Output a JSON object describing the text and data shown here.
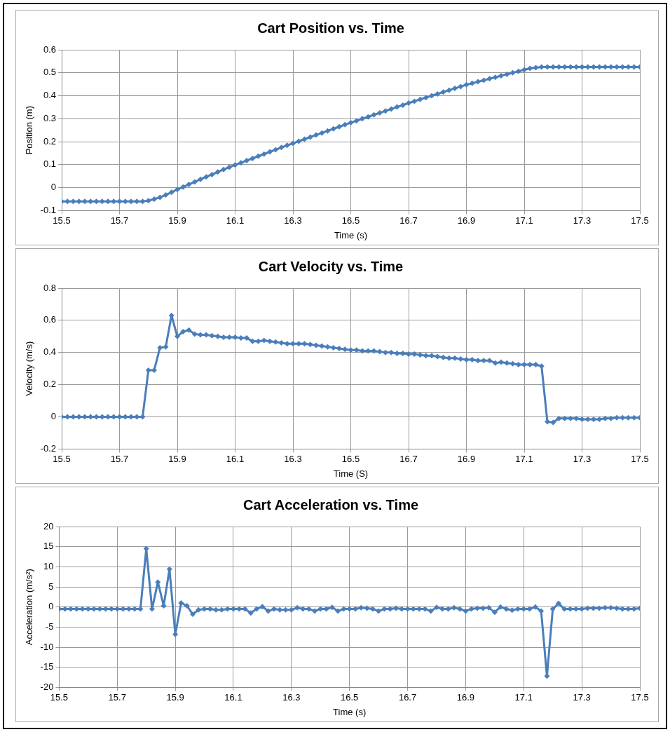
{
  "chart_data": [
    {
      "type": "line",
      "title": "Cart Position vs. Time",
      "xlabel": "Time (s)",
      "ylabel": "Position (m)",
      "xlim": [
        15.5,
        17.5
      ],
      "xticks": [
        15.5,
        15.7,
        15.9,
        16.1,
        16.3,
        16.5,
        16.7,
        16.9,
        17.1,
        17.3,
        17.5
      ],
      "ylim": [
        -0.1,
        0.6
      ],
      "yticks": [
        -0.1,
        0,
        0.1,
        0.2,
        0.3,
        0.4,
        0.5,
        0.6
      ],
      "grid": true,
      "legend": false,
      "marker": "diamond",
      "line_style": "solid",
      "x": [
        15.5,
        15.52,
        15.54,
        15.56,
        15.58,
        15.6,
        15.62,
        15.64,
        15.66,
        15.68,
        15.7,
        15.72,
        15.74,
        15.76,
        15.78,
        15.8,
        15.82,
        15.84,
        15.86,
        15.88,
        15.9,
        15.92,
        15.94,
        15.96,
        15.98,
        16,
        16.02,
        16.04,
        16.06,
        16.08,
        16.1,
        16.12,
        16.14,
        16.16,
        16.18,
        16.2,
        16.22,
        16.24,
        16.26,
        16.28,
        16.3,
        16.32,
        16.34,
        16.36,
        16.38,
        16.4,
        16.42,
        16.44,
        16.46,
        16.48,
        16.5,
        16.52,
        16.54,
        16.56,
        16.58,
        16.6,
        16.62,
        16.64,
        16.66,
        16.68,
        16.7,
        16.72,
        16.74,
        16.76,
        16.78,
        16.8,
        16.82,
        16.84,
        16.86,
        16.88,
        16.9,
        16.92,
        16.94,
        16.96,
        16.98,
        17,
        17.02,
        17.04,
        17.06,
        17.08,
        17.1,
        17.12,
        17.14,
        17.16,
        17.18,
        17.2,
        17.22,
        17.24,
        17.26,
        17.28,
        17.3,
        17.32,
        17.34,
        17.36,
        17.38,
        17.4,
        17.42,
        17.44,
        17.46,
        17.48,
        17.5
      ],
      "series": [
        {
          "color": "#4a7ebb",
          "values": [
            -0.06,
            -0.06,
            -0.06,
            -0.06,
            -0.06,
            -0.06,
            -0.06,
            -0.06,
            -0.06,
            -0.06,
            -0.06,
            -0.06,
            -0.06,
            -0.06,
            -0.06,
            -0.057,
            -0.05,
            -0.042,
            -0.032,
            -0.02,
            -0.008,
            0.003,
            0.014,
            0.025,
            0.036,
            0.047,
            0.057,
            0.068,
            0.079,
            0.089,
            0.099,
            0.108,
            0.118,
            0.127,
            0.137,
            0.146,
            0.156,
            0.165,
            0.175,
            0.184,
            0.193,
            0.202,
            0.211,
            0.22,
            0.229,
            0.238,
            0.247,
            0.256,
            0.265,
            0.274,
            0.283,
            0.291,
            0.3,
            0.308,
            0.317,
            0.325,
            0.334,
            0.342,
            0.351,
            0.359,
            0.368,
            0.376,
            0.384,
            0.392,
            0.4,
            0.408,
            0.416,
            0.424,
            0.432,
            0.44,
            0.448,
            0.454,
            0.461,
            0.467,
            0.474,
            0.48,
            0.487,
            0.493,
            0.5,
            0.506,
            0.513,
            0.519,
            0.522,
            0.525,
            0.525,
            0.525,
            0.525,
            0.525,
            0.525,
            0.525,
            0.525,
            0.525,
            0.525,
            0.525,
            0.525,
            0.525,
            0.525,
            0.525,
            0.525,
            0.525,
            0.525
          ]
        }
      ]
    },
    {
      "type": "line",
      "title": "Cart Velocity vs. Time",
      "xlabel": "Time (S)",
      "ylabel": "Velocity (m/s)",
      "xlim": [
        15.5,
        17.5
      ],
      "xticks": [
        15.5,
        15.7,
        15.9,
        16.1,
        16.3,
        16.5,
        16.7,
        16.9,
        17.1,
        17.3,
        17.5
      ],
      "ylim": [
        -0.2,
        0.8
      ],
      "yticks": [
        -0.2,
        0,
        0.2,
        0.4,
        0.6,
        0.8
      ],
      "grid": true,
      "legend": false,
      "marker": "diamond",
      "line_style": "solid",
      "x": [
        15.5,
        15.52,
        15.54,
        15.56,
        15.58,
        15.6,
        15.62,
        15.64,
        15.66,
        15.68,
        15.7,
        15.72,
        15.74,
        15.76,
        15.78,
        15.8,
        15.82,
        15.84,
        15.86,
        15.88,
        15.9,
        15.92,
        15.94,
        15.96,
        15.98,
        16,
        16.02,
        16.04,
        16.06,
        16.08,
        16.1,
        16.12,
        16.14,
        16.16,
        16.18,
        16.2,
        16.22,
        16.24,
        16.26,
        16.28,
        16.3,
        16.32,
        16.34,
        16.36,
        16.38,
        16.4,
        16.42,
        16.44,
        16.46,
        16.48,
        16.5,
        16.52,
        16.54,
        16.56,
        16.58,
        16.6,
        16.62,
        16.64,
        16.66,
        16.68,
        16.7,
        16.72,
        16.74,
        16.76,
        16.78,
        16.8,
        16.82,
        16.84,
        16.86,
        16.88,
        16.9,
        16.92,
        16.94,
        16.96,
        16.98,
        17,
        17.02,
        17.04,
        17.06,
        17.08,
        17.1,
        17.12,
        17.14,
        17.16,
        17.18,
        17.2,
        17.22,
        17.24,
        17.26,
        17.28,
        17.3,
        17.32,
        17.34,
        17.36,
        17.38,
        17.4,
        17.42,
        17.44,
        17.46,
        17.48,
        17.5
      ],
      "series": [
        {
          "color": "#4a7ebb",
          "values": [
            0,
            0,
            0,
            0,
            0,
            0,
            0,
            0,
            0,
            0,
            0,
            0,
            0,
            0,
            0,
            0.29,
            0.29,
            0.43,
            0.435,
            0.63,
            0.5,
            0.53,
            0.54,
            0.515,
            0.51,
            0.51,
            0.505,
            0.5,
            0.495,
            0.495,
            0.495,
            0.49,
            0.49,
            0.47,
            0.47,
            0.475,
            0.47,
            0.465,
            0.46,
            0.455,
            0.455,
            0.455,
            0.455,
            0.45,
            0.445,
            0.44,
            0.435,
            0.43,
            0.425,
            0.42,
            0.415,
            0.415,
            0.41,
            0.41,
            0.41,
            0.405,
            0.4,
            0.4,
            0.395,
            0.395,
            0.39,
            0.39,
            0.385,
            0.38,
            0.38,
            0.375,
            0.37,
            0.365,
            0.365,
            0.36,
            0.355,
            0.355,
            0.35,
            0.35,
            0.35,
            0.335,
            0.34,
            0.335,
            0.33,
            0.325,
            0.325,
            0.325,
            0.325,
            0.315,
            -0.03,
            -0.035,
            -0.01,
            -0.01,
            -0.01,
            -0.01,
            -0.015,
            -0.015,
            -0.015,
            -0.015,
            -0.01,
            -0.01,
            -0.005,
            -0.005,
            -0.005,
            -0.005,
            -0.005
          ]
        }
      ]
    },
    {
      "type": "line",
      "title": "Cart Acceleration vs. Time",
      "xlabel": "Time (s)",
      "ylabel": "Acceleration (m/s²)",
      "xlim": [
        15.5,
        17.5
      ],
      "xticks": [
        15.5,
        15.7,
        15.9,
        16.1,
        16.3,
        16.5,
        16.7,
        16.9,
        17.1,
        17.3,
        17.5
      ],
      "ylim": [
        -20,
        20
      ],
      "yticks": [
        -20,
        -15,
        -10,
        -5,
        0,
        5,
        10,
        15,
        20
      ],
      "grid": true,
      "legend": false,
      "marker": "diamond",
      "line_style": "solid",
      "x": [
        15.5,
        15.52,
        15.54,
        15.56,
        15.58,
        15.6,
        15.62,
        15.64,
        15.66,
        15.68,
        15.7,
        15.72,
        15.74,
        15.76,
        15.78,
        15.8,
        15.82,
        15.84,
        15.86,
        15.88,
        15.9,
        15.92,
        15.94,
        15.96,
        15.98,
        16,
        16.02,
        16.04,
        16.06,
        16.08,
        16.1,
        16.12,
        16.14,
        16.16,
        16.18,
        16.2,
        16.22,
        16.24,
        16.26,
        16.28,
        16.3,
        16.32,
        16.34,
        16.36,
        16.38,
        16.4,
        16.42,
        16.44,
        16.46,
        16.48,
        16.5,
        16.52,
        16.54,
        16.56,
        16.58,
        16.6,
        16.62,
        16.64,
        16.66,
        16.68,
        16.7,
        16.72,
        16.74,
        16.76,
        16.78,
        16.8,
        16.82,
        16.84,
        16.86,
        16.88,
        16.9,
        16.92,
        16.94,
        16.96,
        16.98,
        17,
        17.02,
        17.04,
        17.06,
        17.08,
        17.1,
        17.12,
        17.14,
        17.16,
        17.18,
        17.2,
        17.22,
        17.24,
        17.26,
        17.28,
        17.3,
        17.32,
        17.34,
        17.36,
        17.38,
        17.4,
        17.42,
        17.44,
        17.46,
        17.48,
        17.5
      ],
      "series": [
        {
          "color": "#4a7ebb",
          "values": [
            -0.5,
            -0.5,
            -0.5,
            -0.5,
            -0.5,
            -0.5,
            -0.5,
            -0.5,
            -0.5,
            -0.5,
            -0.5,
            -0.5,
            -0.5,
            -0.5,
            -0.5,
            14.5,
            -0.5,
            6.2,
            0.3,
            9.4,
            -6.8,
            1,
            0.3,
            -1.8,
            -0.7,
            -0.5,
            -0.5,
            -0.7,
            -0.7,
            -0.5,
            -0.5,
            -0.5,
            -0.5,
            -1.5,
            -0.5,
            0.1,
            -1,
            -0.5,
            -0.7,
            -0.7,
            -0.7,
            -0.2,
            -0.5,
            -0.5,
            -1,
            -0.5,
            -0.5,
            -0.1,
            -1,
            -0.5,
            -0.5,
            -0.5,
            -0.2,
            -0.3,
            -0.5,
            -1,
            -0.5,
            -0.5,
            -0.3,
            -0.5,
            -0.5,
            -0.5,
            -0.5,
            -0.5,
            -1,
            -0.1,
            -0.5,
            -0.5,
            -0.2,
            -0.5,
            -1,
            -0.5,
            -0.3,
            -0.3,
            -0.2,
            -1.3,
            0,
            -0.5,
            -0.8,
            -0.5,
            -0.5,
            -0.5,
            0,
            -1,
            -17.2,
            -0.5,
            0.9,
            -0.5,
            -0.5,
            -0.5,
            -0.5,
            -0.3,
            -0.3,
            -0.3,
            -0.2,
            -0.2,
            -0.3,
            -0.5,
            -0.5,
            -0.5,
            -0.3
          ]
        }
      ]
    }
  ]
}
